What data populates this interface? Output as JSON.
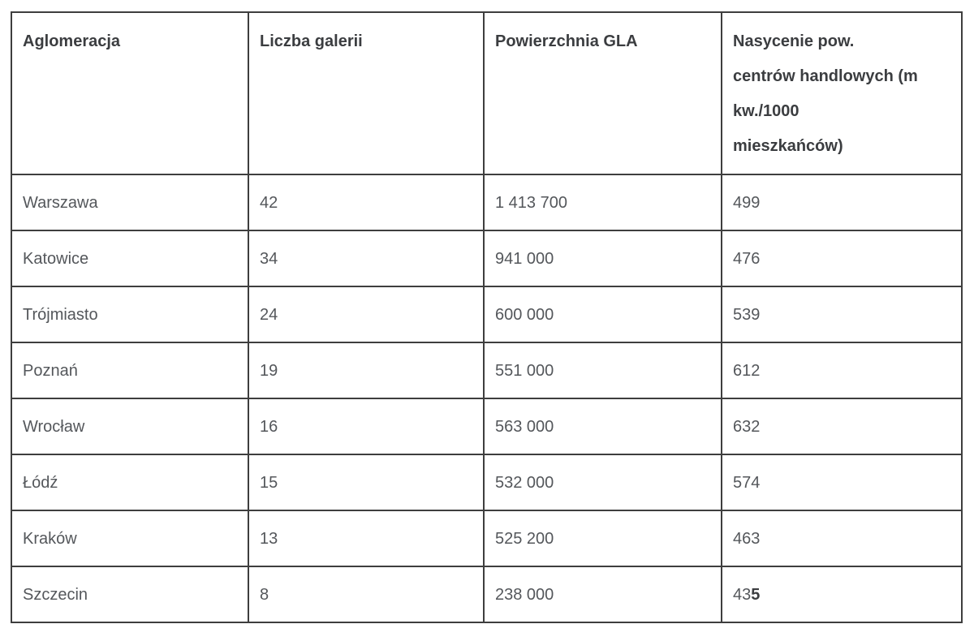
{
  "table": {
    "headers": {
      "aglomeracja": "Aglomeracja",
      "liczba_galerii": "Liczba galerii",
      "powierzchnia_gla": "Powierzchnia GLA",
      "nasycenie": "Nasycenie pow. centrów handlowych (m kw./1000 mieszkańców)",
      "nasycenie_lines": [
        "Nasycenie pow.",
        "centrów handlowych (m",
        "kw./1000",
        "mieszkańców)"
      ]
    },
    "rows": [
      {
        "aglomeracja": "Warszawa",
        "liczba_galerii": "42",
        "powierzchnia_gla": "1 413 700",
        "nasycenie": "499"
      },
      {
        "aglomeracja": "Katowice",
        "liczba_galerii": "34",
        "powierzchnia_gla": "941 000",
        "nasycenie": "476"
      },
      {
        "aglomeracja": "Trójmiasto",
        "liczba_galerii": "24",
        "powierzchnia_gla": "600 000",
        "nasycenie": "539"
      },
      {
        "aglomeracja": "Poznań",
        "liczba_galerii": "19",
        "powierzchnia_gla": "551 000",
        "nasycenie": "612"
      },
      {
        "aglomeracja": "Wrocław",
        "liczba_galerii": "16",
        "powierzchnia_gla": "563 000",
        "nasycenie": "632"
      },
      {
        "aglomeracja": "Łódź",
        "liczba_galerii": "15",
        "powierzchnia_gla": "532 000",
        "nasycenie": "574"
      },
      {
        "aglomeracja": "Kraków",
        "liczba_galerii": "13",
        "powierzchnia_gla": "525 200",
        "nasycenie": "463"
      },
      {
        "aglomeracja": "Szczecin",
        "liczba_galerii": "8",
        "powierzchnia_gla": "238 000",
        "nasycenie": "435",
        "nasycenie_normal_part": "43",
        "nasycenie_bold_part": "5"
      }
    ],
    "colors": {
      "border": "#3e3e3e",
      "header_text": "#3b3d40",
      "body_text": "#54575b",
      "background": "#ffffff"
    }
  }
}
